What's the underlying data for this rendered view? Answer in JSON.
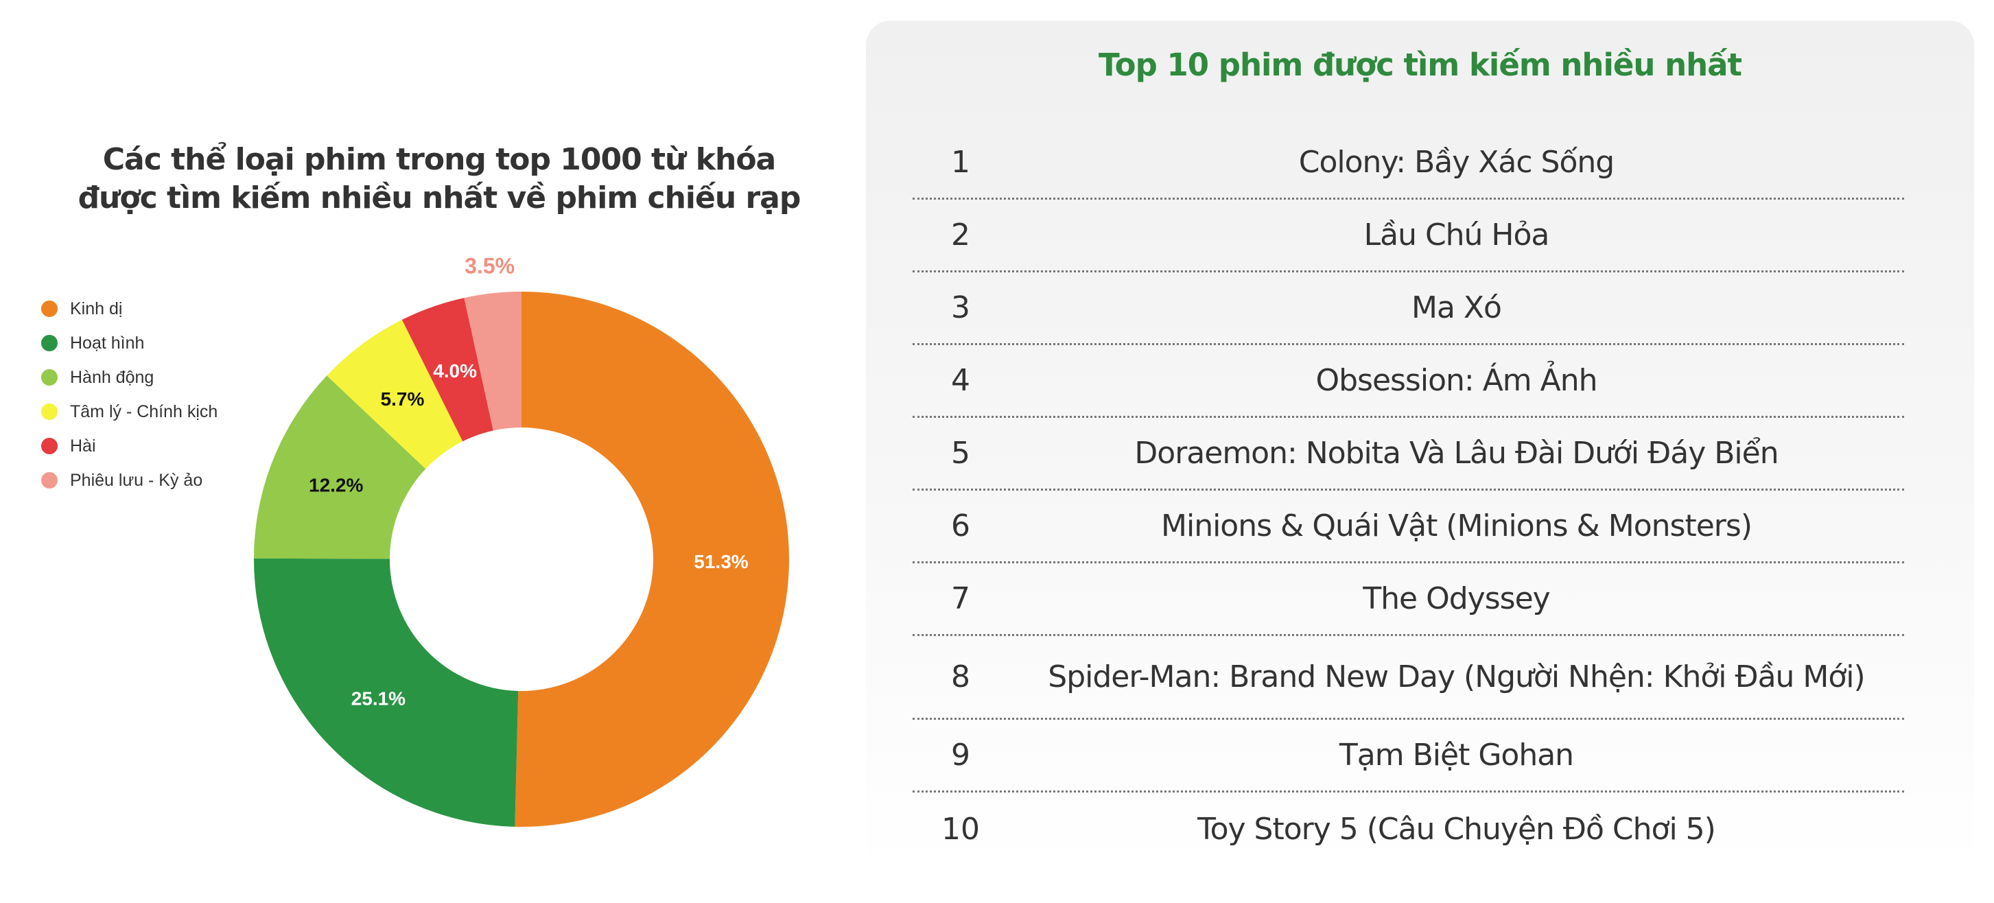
{
  "chart_data": {
    "type": "pie",
    "variant": "donut",
    "title": "Các thể loại phim trong top 1000 từ khóa được tìm kiếm nhiều nhất về phim chiếu rạp",
    "title_lines": [
      "Các thể loại phim trong top 1000 từ khóa",
      "được tìm kiếm nhiều nhất về phim chiếu rạp"
    ],
    "legend_position": "left",
    "slices": [
      {
        "name": "Kinh dị",
        "value": 51.3,
        "label": "51.3%",
        "color": "#ee8221",
        "label_color": "#ffffff"
      },
      {
        "name": "Hoạt hình",
        "value": 25.1,
        "label": "25.1%",
        "color": "#2a9445",
        "label_color": "#ffffff"
      },
      {
        "name": "Hành động",
        "value": 12.2,
        "label": "12.2%",
        "color": "#94c94a",
        "label_color": "#111111"
      },
      {
        "name": "Tâm lý - Chính kịch",
        "value": 5.7,
        "label": "5.7%",
        "color": "#f5f33b",
        "label_color": "#111111"
      },
      {
        "name": "Hài",
        "value": 4.0,
        "label": "4.0%",
        "color": "#e63b3f",
        "label_color": "#ffffff"
      },
      {
        "name": "Phiêu lưu - Kỳ ảo",
        "value": 3.5,
        "label": "3.5%",
        "color": "#f29a8f",
        "label_color": "#f0907f",
        "label_outside": true
      }
    ]
  },
  "ranking": {
    "title": "Top 10 phim được tìm kiếm nhiều nhất",
    "items": [
      {
        "rank": "1",
        "title": "Colony: Bầy Xác Sống"
      },
      {
        "rank": "2",
        "title": "Lầu Chú Hỏa"
      },
      {
        "rank": "3",
        "title": "Ma Xó"
      },
      {
        "rank": "4",
        "title": "Obsession: Ám Ảnh"
      },
      {
        "rank": "5",
        "title": "Doraemon: Nobita Và Lâu Đài Dưới Đáy Biển"
      },
      {
        "rank": "6",
        "title": "Minions & Quái Vật (Minions & Monsters)"
      },
      {
        "rank": "7",
        "title": "The Odyssey"
      },
      {
        "rank": "8",
        "title": "Spider-Man: Brand New Day (Người Nhện: Khởi Đầu Mới)"
      },
      {
        "rank": "9",
        "title": "Tạm Biệt Gohan"
      },
      {
        "rank": "10",
        "title": "Toy Story 5 (Câu Chuyện Đồ Chơi 5)"
      }
    ]
  },
  "colors": {
    "title_green": "#2f8a3e",
    "text": "#333333"
  }
}
